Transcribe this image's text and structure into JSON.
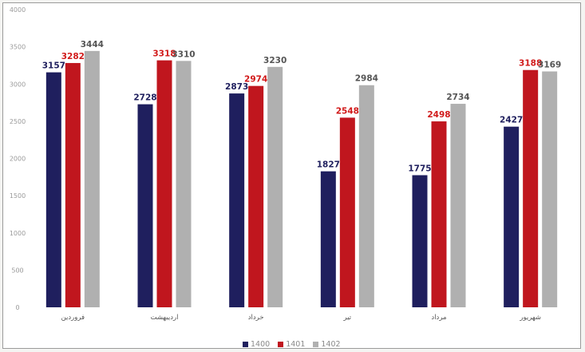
{
  "chart_data": {
    "type": "bar",
    "categories": [
      "فروردین",
      "اردیبهشت",
      "خرداد",
      "تیر",
      "مرداد",
      "شهریور"
    ],
    "series": [
      {
        "name": "1400",
        "color": "#1f1f5e",
        "label_color": "#1f1f5e",
        "values": [
          3157,
          2728,
          2873,
          1827,
          1775,
          2427
        ]
      },
      {
        "name": "1401",
        "color": "#c0161e",
        "label_color": "#d11a1a",
        "values": [
          3282,
          3318,
          2974,
          2548,
          2498,
          3188
        ]
      },
      {
        "name": "1402",
        "color": "#b0b0b0",
        "label_color": "#555555",
        "values": [
          3444,
          3310,
          3230,
          2984,
          2734,
          3169
        ]
      }
    ],
    "yticks": [
      0,
      500,
      1000,
      1500,
      2000,
      2500,
      3000,
      3500,
      4000
    ],
    "ylim": [
      0,
      4000
    ],
    "grid": false,
    "legend": "bottom-center"
  }
}
